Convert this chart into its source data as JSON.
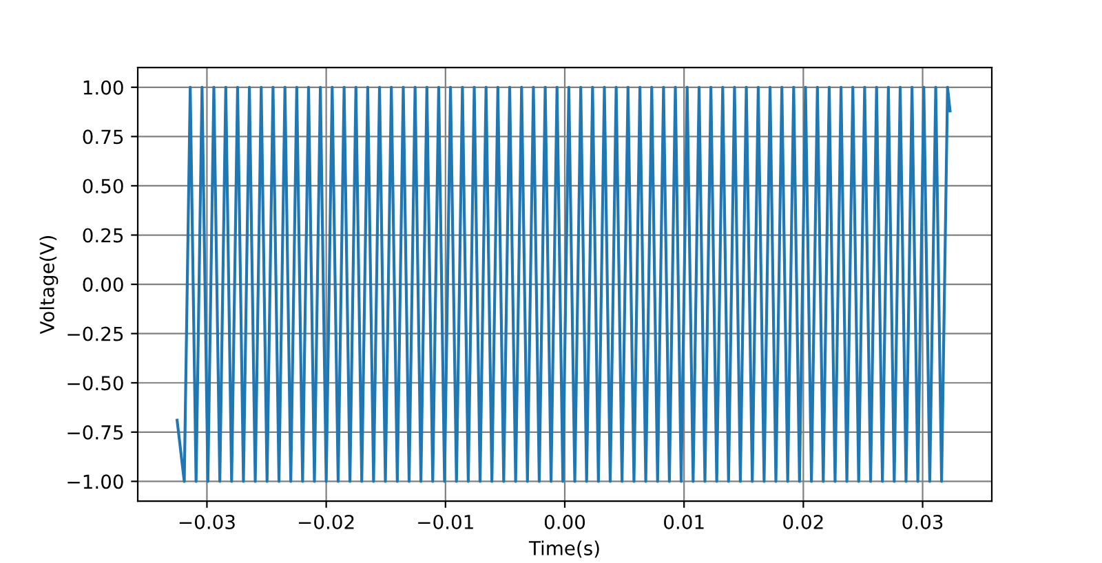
{
  "chart_data": {
    "type": "line",
    "xlabel": "Time(s)",
    "ylabel": "Voltage(V)",
    "xlim": [
      -0.0358,
      0.0358
    ],
    "ylim": [
      -1.1,
      1.1
    ],
    "xticks": [
      {
        "value": -0.03,
        "label": "−0.03"
      },
      {
        "value": -0.02,
        "label": "−0.02"
      },
      {
        "value": -0.01,
        "label": "−0.01"
      },
      {
        "value": 0,
        "label": "0.00"
      },
      {
        "value": 0.01,
        "label": "0.01"
      },
      {
        "value": 0.02,
        "label": "0.02"
      },
      {
        "value": 0.03,
        "label": "0.03"
      }
    ],
    "yticks": [
      {
        "value": -1,
        "label": "−1.00"
      },
      {
        "value": -0.75,
        "label": "−0.75"
      },
      {
        "value": -0.5,
        "label": "−0.50"
      },
      {
        "value": -0.25,
        "label": "−0.25"
      },
      {
        "value": 0,
        "label": "0.00"
      },
      {
        "value": 0.25,
        "label": "0.25"
      },
      {
        "value": 0.5,
        "label": "0.50"
      },
      {
        "value": 0.75,
        "label": "0.75"
      },
      {
        "value": 1,
        "label": "1.00"
      }
    ],
    "grid": true,
    "marker": "none",
    "line_style": "solid",
    "series": [
      {
        "color": "#1f77b4",
        "x": [
          -0.0325,
          -0.0319,
          -0.0314,
          -0.03091,
          -0.03041,
          -0.02992,
          -0.02942,
          -0.02892,
          -0.02842,
          -0.02793,
          -0.02743,
          -0.02694,
          -0.02644,
          -0.02595,
          -0.02545,
          -0.02496,
          -0.02446,
          -0.02396,
          -0.02346,
          -0.02297,
          -0.02247,
          -0.02198,
          -0.02148,
          -0.02099,
          -0.02049,
          -0.02,
          -0.0195,
          -0.019,
          -0.0185,
          -0.01801,
          -0.01751,
          -0.01702,
          -0.01652,
          -0.01603,
          -0.01553,
          -0.01504,
          -0.01454,
          -0.01404,
          -0.01354,
          -0.01305,
          -0.01255,
          -0.01206,
          -0.01156,
          -0.01107,
          -0.01057,
          -0.01008,
          -0.00958,
          -0.00908,
          -0.00858,
          -0.00809,
          -0.00759,
          -0.0071,
          -0.0066,
          -0.00611,
          -0.00561,
          -0.00512,
          -0.00462,
          -0.00412,
          -0.00362,
          -0.00313,
          -0.00263,
          -0.00214,
          -0.00164,
          -0.00115,
          -0.00065,
          -0.00016,
          0.00034,
          0.00084,
          0.00134,
          0.00183,
          0.00233,
          0.00282,
          0.00332,
          0.00381,
          0.00431,
          0.0048,
          0.0053,
          0.0058,
          0.0063,
          0.00679,
          0.00729,
          0.00778,
          0.00828,
          0.00877,
          0.00927,
          0.00976,
          0.01026,
          0.01076,
          0.01126,
          0.01175,
          0.01225,
          0.01274,
          0.01324,
          0.01373,
          0.01423,
          0.01472,
          0.01522,
          0.01572,
          0.01622,
          0.01671,
          0.01721,
          0.0177,
          0.0182,
          0.01869,
          0.01919,
          0.01968,
          0.02018,
          0.02068,
          0.02118,
          0.02167,
          0.02217,
          0.02266,
          0.02316,
          0.02365,
          0.02415,
          0.02464,
          0.02514,
          0.02564,
          0.02614,
          0.02663,
          0.02713,
          0.02762,
          0.02812,
          0.02861,
          0.02911,
          0.0296,
          0.0301,
          0.0306,
          0.0311,
          0.03159,
          0.03209,
          0.0323
        ],
        "values": [
          -0.69,
          -1,
          1,
          -1,
          1,
          -1,
          1,
          -1,
          1,
          -1,
          1,
          -1,
          1,
          -1,
          1,
          -1,
          1,
          -1,
          1,
          -1,
          1,
          -1,
          1,
          -1,
          1,
          -1,
          1,
          -1,
          1,
          -1,
          1,
          -1,
          1,
          -1,
          1,
          -1,
          1,
          -1,
          1,
          -1,
          1,
          -1,
          1,
          -1,
          1,
          -1,
          1,
          -1,
          1,
          -1,
          1,
          -1,
          1,
          -1,
          1,
          -1,
          1,
          -1,
          1,
          -1,
          1,
          -1,
          1,
          -1,
          1,
          -1,
          1,
          -1,
          1,
          -1,
          1,
          -1,
          1,
          -1,
          1,
          -1,
          1,
          -1,
          1,
          -1,
          1,
          -1,
          1,
          -1,
          1,
          -1,
          1,
          -1,
          1,
          -1,
          1,
          -1,
          1,
          -1,
          1,
          -1,
          1,
          -1,
          1,
          -1,
          1,
          -1,
          1,
          -1,
          1,
          -1,
          1,
          -1,
          1,
          -1,
          1,
          -1,
          1,
          -1,
          1,
          -1,
          1,
          -1,
          1,
          -1,
          1,
          -1,
          1,
          -1,
          1,
          -1,
          1,
          -1,
          1,
          -1,
          1,
          0.88
        ]
      }
    ]
  }
}
